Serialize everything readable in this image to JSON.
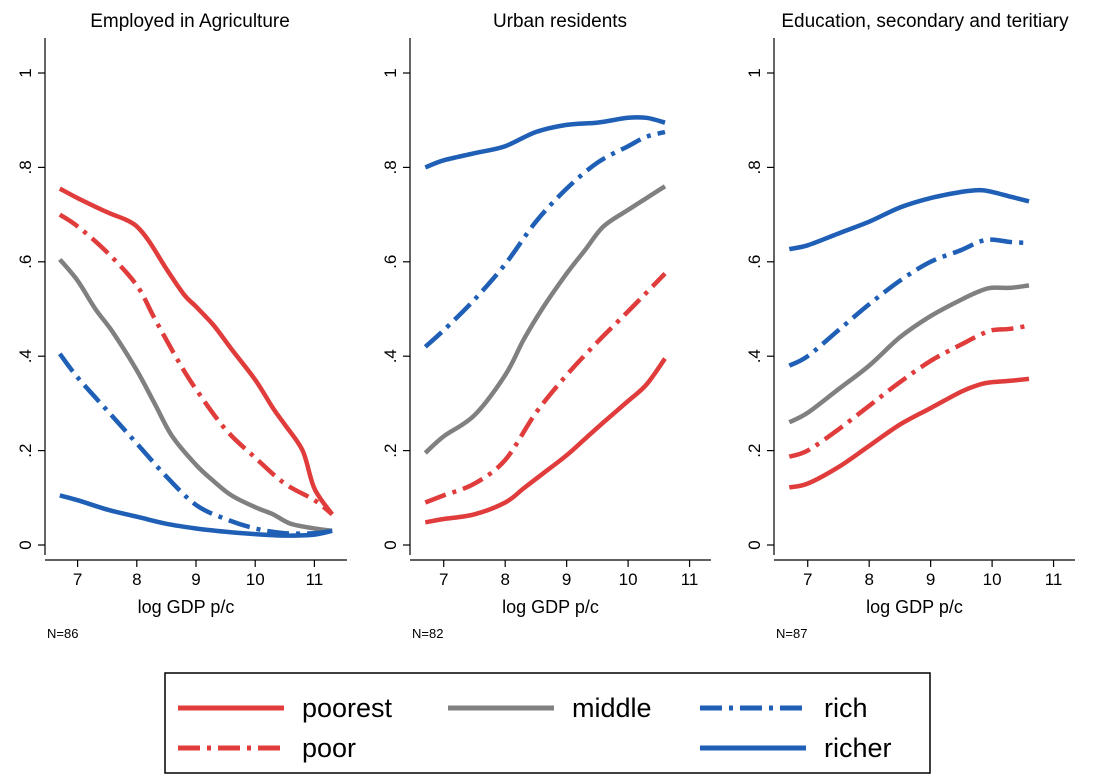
{
  "colors": {
    "poorest": "#e03c3c",
    "poor": "#e03c3c",
    "middle": "#808080",
    "rich": "#1f5fb5",
    "richer": "#1f5fb5"
  },
  "legend": [
    {
      "key": "poorest",
      "label": "poorest",
      "dash": "solid"
    },
    {
      "key": "middle",
      "label": "middle",
      "dash": "solid"
    },
    {
      "key": "rich",
      "label": "rich",
      "dash": "dashdot"
    },
    {
      "key": "poor",
      "label": "poor",
      "dash": "dashdot"
    },
    {
      "key": "richer",
      "label": "richer",
      "dash": "solid"
    }
  ],
  "chart_data": [
    {
      "type": "line",
      "title": "Employed in Agriculture",
      "xlabel": "log GDP p/c",
      "note": "N=86",
      "xlim": [
        6.5,
        11.5
      ],
      "ylim": [
        0,
        1
      ],
      "xticks": [
        "7",
        "8",
        "9",
        "10",
        "11"
      ],
      "yticks": [
        "0",
        ".2",
        ".4",
        ".6",
        ".8",
        "1"
      ],
      "series": [
        {
          "name": "poorest",
          "style": "solid",
          "x": [
            6.7,
            7.0,
            7.5,
            7.8,
            8.0,
            8.2,
            8.5,
            8.8,
            9.0,
            9.3,
            9.6,
            10.0,
            10.3,
            10.5,
            10.8,
            11.0,
            11.3
          ],
          "y": [
            0.755,
            0.735,
            0.705,
            0.69,
            0.675,
            0.645,
            0.585,
            0.53,
            0.505,
            0.465,
            0.415,
            0.35,
            0.29,
            0.255,
            0.2,
            0.12,
            0.065
          ]
        },
        {
          "name": "poor",
          "style": "dashdot",
          "x": [
            6.7,
            7.0,
            7.5,
            8.0,
            8.3,
            8.7,
            9.0,
            9.5,
            10.0,
            10.5,
            11.0,
            11.3
          ],
          "y": [
            0.7,
            0.675,
            0.62,
            0.55,
            0.48,
            0.39,
            0.33,
            0.245,
            0.185,
            0.13,
            0.095,
            0.065
          ]
        },
        {
          "name": "middle",
          "style": "solid",
          "x": [
            6.7,
            7.0,
            7.3,
            7.6,
            8.0,
            8.3,
            8.6,
            9.0,
            9.3,
            9.6,
            10.0,
            10.3,
            10.6,
            11.0,
            11.3
          ],
          "y": [
            0.605,
            0.56,
            0.5,
            0.45,
            0.37,
            0.3,
            0.23,
            0.17,
            0.135,
            0.105,
            0.08,
            0.065,
            0.045,
            0.035,
            0.03
          ]
        },
        {
          "name": "rich",
          "style": "dashdot",
          "x": [
            6.7,
            7.0,
            7.5,
            8.0,
            8.5,
            9.0,
            9.5,
            10.0,
            10.5,
            11.0,
            11.3
          ],
          "y": [
            0.405,
            0.355,
            0.285,
            0.215,
            0.145,
            0.085,
            0.055,
            0.035,
            0.025,
            0.025,
            0.03
          ]
        },
        {
          "name": "richer",
          "style": "solid",
          "x": [
            6.7,
            7.0,
            7.5,
            8.0,
            8.5,
            9.0,
            9.5,
            10.0,
            10.5,
            11.0,
            11.3
          ],
          "y": [
            0.105,
            0.095,
            0.075,
            0.06,
            0.045,
            0.035,
            0.028,
            0.023,
            0.02,
            0.022,
            0.03
          ]
        }
      ]
    },
    {
      "type": "line",
      "title": "Urban residents",
      "xlabel": "log GDP p/c",
      "note": "N=82",
      "xlim": [
        6.5,
        11.3
      ],
      "ylim": [
        0,
        1
      ],
      "xticks": [
        "7",
        "8",
        "9",
        "10",
        "11"
      ],
      "yticks": [
        "0",
        ".2",
        ".4",
        ".6",
        ".8",
        "1"
      ],
      "series": [
        {
          "name": "poorest",
          "style": "solid",
          "x": [
            6.7,
            7.0,
            7.5,
            8.0,
            8.3,
            8.6,
            9.0,
            9.3,
            9.6,
            10.0,
            10.3,
            10.6
          ],
          "y": [
            0.048,
            0.055,
            0.065,
            0.09,
            0.12,
            0.15,
            0.19,
            0.225,
            0.26,
            0.305,
            0.34,
            0.395
          ]
        },
        {
          "name": "poor",
          "style": "dashdot",
          "x": [
            6.7,
            7.0,
            7.5,
            8.0,
            8.5,
            9.0,
            9.5,
            10.0,
            10.6
          ],
          "y": [
            0.09,
            0.105,
            0.13,
            0.18,
            0.28,
            0.36,
            0.43,
            0.495,
            0.575
          ]
        },
        {
          "name": "middle",
          "style": "solid",
          "x": [
            6.7,
            7.0,
            7.5,
            8.0,
            8.3,
            8.6,
            9.0,
            9.3,
            9.6,
            10.0,
            10.3,
            10.6
          ],
          "y": [
            0.195,
            0.23,
            0.275,
            0.36,
            0.435,
            0.5,
            0.575,
            0.625,
            0.675,
            0.71,
            0.735,
            0.76
          ]
        },
        {
          "name": "rich",
          "style": "dashdot",
          "x": [
            6.7,
            7.0,
            7.5,
            8.0,
            8.5,
            9.0,
            9.5,
            10.0,
            10.3,
            10.6
          ],
          "y": [
            0.42,
            0.455,
            0.52,
            0.595,
            0.685,
            0.755,
            0.81,
            0.845,
            0.865,
            0.875
          ]
        },
        {
          "name": "richer",
          "style": "solid",
          "x": [
            6.7,
            7.0,
            7.5,
            8.0,
            8.5,
            9.0,
            9.5,
            10.0,
            10.3,
            10.6
          ],
          "y": [
            0.8,
            0.815,
            0.83,
            0.845,
            0.875,
            0.89,
            0.895,
            0.905,
            0.905,
            0.895
          ]
        }
      ]
    },
    {
      "type": "line",
      "title": "Education, secondary and teritiary",
      "xlabel": "log GDP p/c",
      "note": "N=87",
      "xlim": [
        6.5,
        11.3
      ],
      "ylim": [
        0,
        1
      ],
      "xticks": [
        "7",
        "8",
        "9",
        "10",
        "11"
      ],
      "yticks": [
        "0",
        ".2",
        ".4",
        ".6",
        ".8",
        "1"
      ],
      "series": [
        {
          "name": "poorest",
          "style": "solid",
          "x": [
            6.7,
            7.0,
            7.5,
            8.0,
            8.5,
            9.0,
            9.5,
            9.8,
            10.0,
            10.3,
            10.6
          ],
          "y": [
            0.122,
            0.13,
            0.165,
            0.21,
            0.255,
            0.29,
            0.325,
            0.34,
            0.345,
            0.348,
            0.352
          ]
        },
        {
          "name": "poor",
          "style": "dashdot",
          "x": [
            6.7,
            7.0,
            7.5,
            8.0,
            8.5,
            9.0,
            9.5,
            9.8,
            10.0,
            10.3,
            10.6
          ],
          "y": [
            0.187,
            0.2,
            0.245,
            0.295,
            0.345,
            0.39,
            0.425,
            0.445,
            0.455,
            0.458,
            0.465
          ]
        },
        {
          "name": "middle",
          "style": "solid",
          "x": [
            6.7,
            7.0,
            7.5,
            8.0,
            8.5,
            9.0,
            9.5,
            9.8,
            10.0,
            10.3,
            10.6
          ],
          "y": [
            0.26,
            0.28,
            0.33,
            0.38,
            0.44,
            0.485,
            0.52,
            0.538,
            0.545,
            0.545,
            0.55
          ]
        },
        {
          "name": "rich",
          "style": "dashdot",
          "x": [
            6.7,
            7.0,
            7.5,
            8.0,
            8.5,
            9.0,
            9.5,
            9.8,
            10.0,
            10.3,
            10.6
          ],
          "y": [
            0.38,
            0.4,
            0.455,
            0.51,
            0.56,
            0.6,
            0.625,
            0.643,
            0.647,
            0.642,
            0.64
          ]
        },
        {
          "name": "richer",
          "style": "solid",
          "x": [
            6.7,
            7.0,
            7.5,
            8.0,
            8.5,
            9.0,
            9.5,
            9.8,
            10.0,
            10.3,
            10.6
          ],
          "y": [
            0.627,
            0.635,
            0.66,
            0.685,
            0.715,
            0.735,
            0.748,
            0.752,
            0.748,
            0.738,
            0.728
          ]
        }
      ]
    }
  ]
}
